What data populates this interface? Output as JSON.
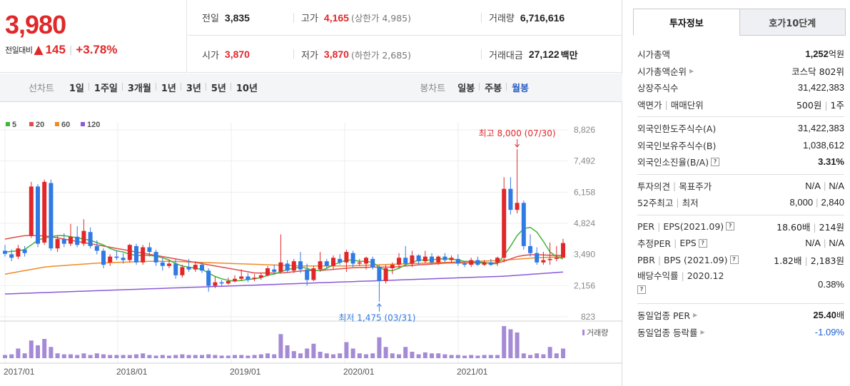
{
  "summary": {
    "price": "3,980",
    "change_label": "전일대비",
    "change_arrow": "▲",
    "change_amount": "145",
    "change_pct": "+3.78%"
  },
  "stats": {
    "prev_label": "전일",
    "prev_value": "3,835",
    "high_label": "고가",
    "high_value": "4,165",
    "upper_limit": "(상한가 4,985)",
    "volume_label": "거래량",
    "volume_value": "6,716,616",
    "open_label": "시가",
    "open_value": "3,870",
    "low_label": "저가",
    "low_value": "3,870",
    "lower_limit": "(하한가 2,685)",
    "amount_label": "거래대금",
    "amount_value": "27,122",
    "amount_unit": "백만"
  },
  "period_bar": {
    "line_label": "선차트",
    "line_options": [
      "1일",
      "1주일",
      "3개월",
      "1년",
      "3년",
      "5년",
      "10년"
    ],
    "candle_label": "봉차트",
    "candle_options": [
      "일봉",
      "주봉",
      "월봉"
    ],
    "candle_active": "월봉"
  },
  "chart_data": {
    "type": "candlestick",
    "legend": [
      {
        "name": "5",
        "color": "#3fb53a"
      },
      {
        "name": "20",
        "color": "#e34b4b"
      },
      {
        "name": "60",
        "color": "#f08a24"
      },
      {
        "name": "120",
        "color": "#8b5ad8"
      }
    ],
    "y_ticks": [
      "8,826",
      "7,492",
      "6,158",
      "4,824",
      "3,490",
      "2,156",
      "823"
    ],
    "x_ticks": [
      "2017/01",
      "2018/01",
      "2019/01",
      "2020/01",
      "2021/01"
    ],
    "high_annotation": "최고 8,000 (07/30)",
    "low_annotation": "최저 1,475 (03/31)",
    "volume_label": "거래량",
    "ylim": [
      823,
      8826
    ],
    "candles": [
      [
        3650,
        3520,
        3900,
        3400
      ],
      [
        3500,
        3350,
        3700,
        3200
      ],
      [
        3400,
        3750,
        3900,
        3300
      ],
      [
        3700,
        3550,
        3850,
        3400
      ],
      [
        4300,
        6400,
        6600,
        4200
      ],
      [
        6400,
        3950,
        6500,
        3800
      ],
      [
        4000,
        6600,
        6700,
        3900
      ],
      [
        6550,
        3750,
        6700,
        3650
      ],
      [
        3750,
        4150,
        4300,
        3600
      ],
      [
        4150,
        3950,
        4400,
        3800
      ],
      [
        3950,
        4250,
        4800,
        3850
      ],
      [
        4250,
        3900,
        4700,
        3800
      ],
      [
        3950,
        4500,
        5000,
        3850
      ],
      [
        4450,
        3850,
        4650,
        3750
      ],
      [
        3850,
        3650,
        4100,
        3500
      ],
      [
        3650,
        3050,
        3750,
        2900
      ],
      [
        3150,
        3400,
        3500,
        3000
      ],
      [
        3400,
        3350,
        3650,
        3250
      ],
      [
        3350,
        3250,
        3550,
        3100
      ],
      [
        3250,
        3900,
        3950,
        3150
      ],
      [
        3850,
        3150,
        3950,
        3050
      ],
      [
        3150,
        3800,
        3900,
        3050
      ],
      [
        3800,
        3600,
        4000,
        3400
      ],
      [
        3600,
        3150,
        3700,
        3000
      ],
      [
        3150,
        3000,
        3350,
        2800
      ],
      [
        3000,
        3100,
        3250,
        2900
      ],
      [
        3100,
        2600,
        3300,
        2450
      ],
      [
        2600,
        2950,
        3050,
        2500
      ],
      [
        2950,
        2850,
        3300,
        2750
      ],
      [
        2850,
        3050,
        3200,
        2750
      ],
      [
        3050,
        2800,
        3150,
        2700
      ],
      [
        2800,
        2150,
        2900,
        1900
      ],
      [
        2150,
        2300,
        2550,
        2050
      ],
      [
        2300,
        2250,
        2400,
        2150
      ],
      [
        2250,
        2350,
        2500,
        2200
      ],
      [
        2350,
        2450,
        2600,
        2300
      ],
      [
        2450,
        2550,
        2850,
        2350
      ],
      [
        2550,
        2400,
        2700,
        2300
      ],
      [
        2450,
        2500,
        2650,
        2350
      ],
      [
        2500,
        2600,
        2700,
        2400
      ],
      [
        2600,
        2900,
        3000,
        2550
      ],
      [
        2850,
        2750,
        3050,
        2650
      ],
      [
        2750,
        3150,
        4350,
        2700
      ],
      [
        3100,
        2800,
        3250,
        2700
      ],
      [
        2800,
        3200,
        3300,
        2700
      ],
      [
        3200,
        2850,
        3600,
        2700
      ],
      [
        2850,
        2400,
        3100,
        2150
      ],
      [
        2400,
        2900,
        3000,
        2350
      ],
      [
        2850,
        3200,
        3600,
        2750
      ],
      [
        3200,
        3000,
        3300,
        2900
      ],
      [
        3000,
        3350,
        3450,
        2850
      ],
      [
        3300,
        3150,
        3500,
        3050
      ],
      [
        3150,
        3600,
        3700,
        2750
      ],
      [
        3550,
        3100,
        3650,
        2950
      ],
      [
        3100,
        3150,
        3300,
        3000
      ],
      [
        3100,
        3350,
        3400,
        2850
      ],
      [
        3300,
        2950,
        3400,
        2850
      ],
      [
        2950,
        2350,
        3050,
        1475
      ],
      [
        2350,
        2900,
        3050,
        2250
      ],
      [
        2900,
        3050,
        3150,
        2650
      ],
      [
        3050,
        3350,
        3550,
        2900
      ],
      [
        3350,
        3100,
        3850,
        3000
      ],
      [
        3100,
        3450,
        3650,
        2950
      ],
      [
        3450,
        3200,
        3500,
        3050
      ],
      [
        3200,
        3400,
        3650,
        3100
      ],
      [
        3400,
        3150,
        3550,
        3050
      ],
      [
        3150,
        3400,
        3450,
        3050
      ],
      [
        3400,
        3250,
        3550,
        3150
      ],
      [
        3250,
        3350,
        3450,
        3150
      ],
      [
        3300,
        3100,
        3500,
        3000
      ],
      [
        3100,
        3050,
        3200,
        2950
      ],
      [
        3050,
        3250,
        3350,
        2950
      ],
      [
        3250,
        3050,
        3400,
        3000
      ],
      [
        3050,
        3150,
        3250,
        3000
      ],
      [
        3150,
        3050,
        3300,
        3000
      ],
      [
        3150,
        3350,
        3400,
        3000
      ],
      [
        3350,
        6300,
        6800,
        3150
      ],
      [
        6300,
        5400,
        6800,
        5200
      ],
      [
        5400,
        5700,
        8000,
        5250
      ],
      [
        5700,
        3850,
        5800,
        3700
      ],
      [
        3850,
        3550,
        4350,
        3400
      ],
      [
        3550,
        3150,
        3800,
        3050
      ],
      [
        3150,
        3250,
        3600,
        3050
      ],
      [
        3250,
        3300,
        4000,
        3050
      ],
      [
        3300,
        3350,
        3850,
        3200
      ],
      [
        3350,
        3980,
        4165,
        3350
      ]
    ],
    "ma5": [
      3600,
      3620,
      3650,
      3700,
      3900,
      4100,
      4200,
      4250,
      4300,
      4300,
      4250,
      4200,
      4150,
      4100,
      4000,
      3900,
      3750,
      3650,
      3600,
      3500,
      3450,
      3450,
      3450,
      3420,
      3350,
      3250,
      3100,
      3000,
      2950,
      2900,
      2850,
      2700,
      2550,
      2450,
      2380,
      2350,
      2380,
      2420,
      2450,
      2500,
      2600,
      2650,
      2750,
      2850,
      2900,
      2950,
      2900,
      2800,
      2800,
      2900,
      3050,
      3150,
      3250,
      3250,
      3200,
      3200,
      3150,
      2950,
      2800,
      2800,
      2900,
      3050,
      3150,
      3250,
      3250,
      3250,
      3300,
      3300,
      3300,
      3250,
      3200,
      3200,
      3150,
      3150,
      3100,
      3100,
      3450,
      3850,
      4300,
      4600,
      4650,
      4450,
      4050,
      3600,
      3400,
      3300
    ],
    "ma20": [
      4150,
      4200,
      4250,
      4300,
      4300,
      4300,
      4280,
      4250,
      4200,
      4150,
      4100,
      4050,
      4000,
      3950,
      3900,
      3850,
      3800,
      3750,
      3700,
      3650,
      3600,
      3550,
      3500,
      3450,
      3400,
      3350,
      3300,
      3250,
      3200,
      3150,
      3100,
      3050,
      3000,
      2950,
      2900,
      2850,
      2800,
      2750,
      2700,
      2700,
      2700,
      2700,
      2700,
      2720,
      2750,
      2780,
      2800,
      2800,
      2800,
      2830,
      2850,
      2880,
      2900,
      2920,
      2930,
      2940,
      2950,
      2950,
      2950,
      2950,
      2970,
      3000,
      3020,
      3050,
      3060,
      3080,
      3100,
      3120,
      3130,
      3130,
      3130,
      3130,
      3130,
      3130,
      3130,
      3130,
      3200,
      3300,
      3400,
      3450,
      3480,
      3480,
      3470,
      3460,
      3450,
      3440
    ],
    "ma60": [
      2650,
      2700,
      2750,
      2800,
      2850,
      2900,
      2950,
      2980,
      3000,
      3020,
      3040,
      3060,
      3080,
      3100,
      3120,
      3130,
      3140,
      3150,
      3160,
      3170,
      3180,
      3190,
      3200,
      3200,
      3200,
      3200,
      3190,
      3180,
      3170,
      3160,
      3150,
      3140,
      3130,
      3120,
      3110,
      3100,
      3090,
      3080,
      3070,
      3060,
      3050,
      3040,
      3030,
      3020,
      3010,
      3000,
      3000,
      3000,
      3000,
      3000,
      3000,
      3000,
      3000,
      3010,
      3020,
      3030,
      3040,
      3050,
      3060,
      3070,
      3080,
      3090,
      3100,
      3110,
      3120,
      3130,
      3140,
      3150,
      3160,
      3170,
      3180,
      3190,
      3200,
      3210,
      3220,
      3230,
      3250,
      3270,
      3290,
      3310,
      3330,
      3350,
      3360,
      3370,
      3380,
      3390
    ],
    "ma120": [
      1800,
      1810,
      1820,
      1830,
      1840,
      1850,
      1860,
      1870,
      1880,
      1890,
      1900,
      1910,
      1920,
      1930,
      1940,
      1950,
      1960,
      1970,
      1980,
      1990,
      2000,
      2010,
      2020,
      2030,
      2040,
      2050,
      2060,
      2070,
      2080,
      2090,
      2100,
      2110,
      2120,
      2130,
      2140,
      2150,
      2160,
      2170,
      2180,
      2190,
      2200,
      2210,
      2220,
      2230,
      2240,
      2250,
      2260,
      2270,
      2280,
      2290,
      2300,
      2310,
      2320,
      2330,
      2340,
      2350,
      2360,
      2370,
      2380,
      2390,
      2400,
      2410,
      2420,
      2430,
      2440,
      2450,
      2460,
      2470,
      2480,
      2490,
      2500,
      2510,
      2520,
      2530,
      2540,
      2550,
      2560,
      2580,
      2600,
      2620,
      2640,
      2660,
      2680,
      2700,
      2720,
      2740
    ],
    "volume": [
      0.1,
      0.12,
      0.3,
      0.15,
      0.55,
      0.4,
      0.6,
      0.35,
      0.15,
      0.12,
      0.12,
      0.1,
      0.15,
      0.1,
      0.15,
      0.12,
      0.1,
      0.1,
      0.1,
      0.1,
      0.12,
      0.15,
      0.1,
      0.08,
      0.1,
      0.08,
      0.1,
      0.12,
      0.1,
      0.1,
      0.1,
      0.12,
      0.1,
      0.08,
      0.08,
      0.1,
      0.1,
      0.08,
      0.1,
      0.12,
      0.15,
      0.12,
      0.75,
      0.4,
      0.22,
      0.15,
      0.3,
      0.45,
      0.2,
      0.15,
      0.12,
      0.15,
      0.5,
      0.3,
      0.15,
      0.12,
      0.15,
      0.65,
      0.35,
      0.15,
      0.12,
      0.35,
      0.2,
      0.12,
      0.18,
      0.15,
      0.15,
      0.12,
      0.1,
      0.1,
      0.08,
      0.1,
      0.08,
      0.1,
      0.1,
      0.1,
      1.0,
      0.9,
      0.8,
      0.15,
      0.1,
      0.15,
      0.12,
      0.35,
      0.15,
      0.3
    ]
  },
  "tabs": {
    "invest_info": "투자정보",
    "orderbook": "호가10단계"
  },
  "info": {
    "mcap_label": "시가총액",
    "mcap_value": "1,252",
    "mcap_unit": "억원",
    "mcap_rank_label": "시가총액순위",
    "mcap_rank_value": "코스닥 802위",
    "shares_label": "상장주식수",
    "shares_value": "31,422,383",
    "par_label": "액면가",
    "trade_unit_label": "매매단위",
    "par_value": "500원",
    "trade_unit_value": "1주",
    "foreign_limit_label": "외국인한도주식수(A)",
    "foreign_limit_value": "31,422,383",
    "foreign_hold_label": "외국인보유주식수(B)",
    "foreign_hold_value": "1,038,612",
    "foreign_ratio_label": "외국인소진율(B/A)",
    "foreign_ratio_value": "3.31%",
    "opinion_label": "투자의견",
    "target_label": "목표주가",
    "opinion_value": "N/A",
    "target_value": "N/A",
    "w52_high_label": "52주최고",
    "w52_low_label": "최저",
    "w52_high_value": "8,000",
    "w52_low_value": "2,840",
    "per_label": "PER",
    "eps_label": "EPS(2021.09)",
    "per_value": "18.60배",
    "eps_value": "214원",
    "est_per_label": "추정PER",
    "est_eps_label": "EPS",
    "est_per_value": "N/A",
    "est_eps_value": "N/A",
    "pbr_label": "PBR",
    "bps_label": "BPS (2021.09)",
    "pbr_value": "1.82배",
    "bps_value": "2,183원",
    "div_label": "배당수익률",
    "div_period": "2020.12",
    "div_value": "0.38%",
    "sector_per_label": "동일업종 PER",
    "sector_per_value": "25.40",
    "sector_per_unit": "배",
    "sector_chg_label": "동일업종 등락률",
    "sector_chg_value": "-1.09%"
  }
}
